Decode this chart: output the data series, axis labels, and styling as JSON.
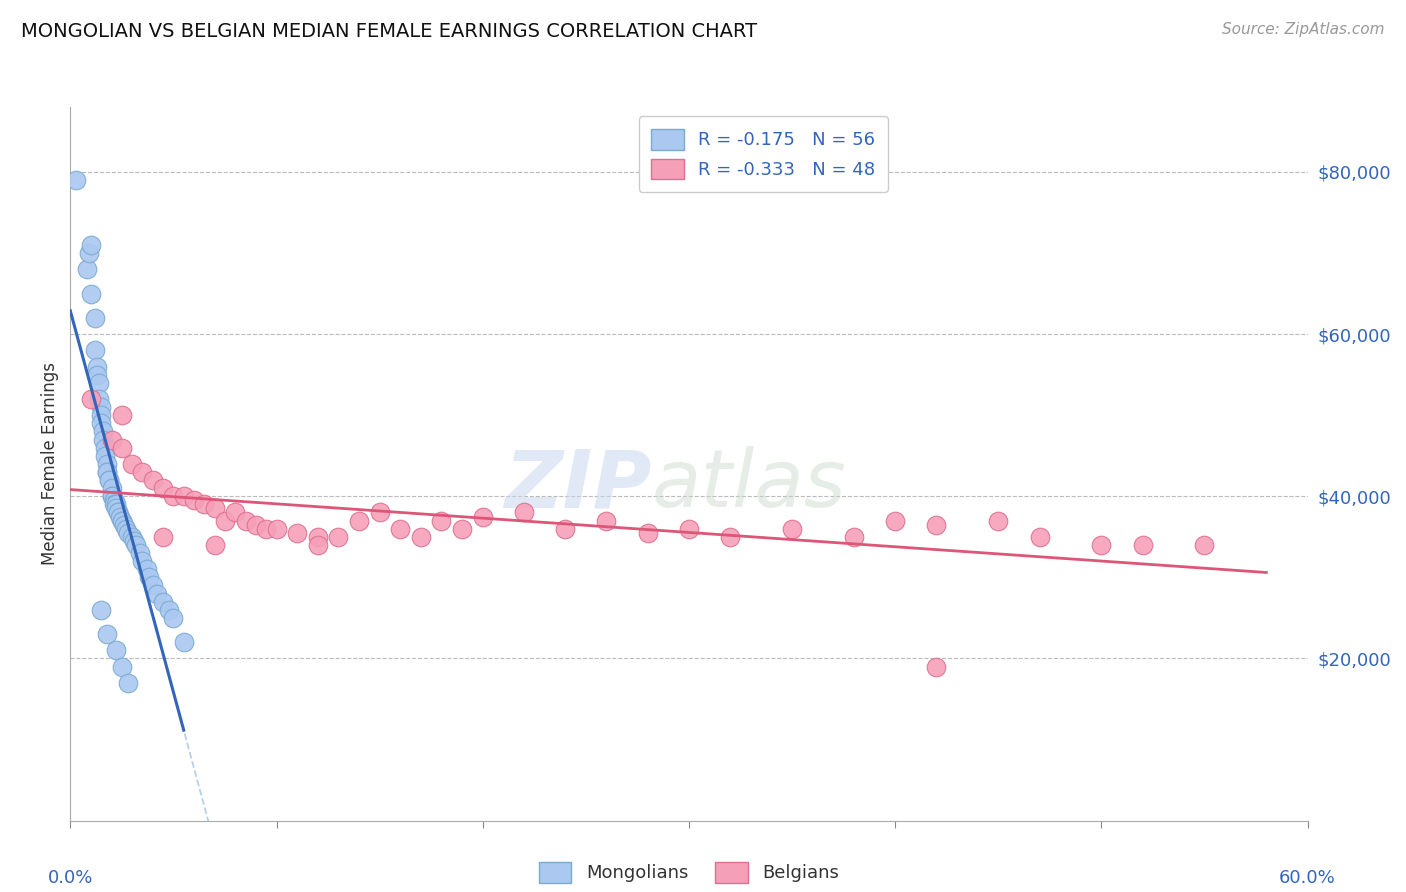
{
  "title": "MONGOLIAN VS BELGIAN MEDIAN FEMALE EARNINGS CORRELATION CHART",
  "source": "Source: ZipAtlas.com",
  "ylabel": "Median Female Earnings",
  "yticks": [
    0,
    20000,
    40000,
    60000,
    80000
  ],
  "ytick_labels": [
    "",
    "$20,000",
    "$40,000",
    "$60,000",
    "$80,000"
  ],
  "xlim": [
    0.0,
    0.6
  ],
  "ylim": [
    0,
    88000
  ],
  "mongolian_r": -0.175,
  "mongolian_n": 56,
  "belgian_r": -0.333,
  "belgian_n": 48,
  "mongolian_color": "#aac8f0",
  "mongolian_edge": "#7aaad0",
  "belgian_color": "#f5a0b8",
  "belgian_edge": "#dd7090",
  "mongolian_line_color": "#3366bb",
  "belgian_line_color": "#dd5577",
  "mongolian_dashed_color": "#99bbdd",
  "background_color": "#ffffff",
  "grid_color": "#bbbbbb",
  "title_color": "#111111",
  "label_color": "#3366bb",
  "mongolian_x": [
    0.003,
    0.008,
    0.009,
    0.01,
    0.01,
    0.012,
    0.012,
    0.013,
    0.013,
    0.014,
    0.014,
    0.015,
    0.015,
    0.015,
    0.016,
    0.016,
    0.017,
    0.017,
    0.018,
    0.018,
    0.018,
    0.019,
    0.019,
    0.02,
    0.02,
    0.02,
    0.021,
    0.021,
    0.022,
    0.022,
    0.023,
    0.023,
    0.024,
    0.025,
    0.025,
    0.026,
    0.027,
    0.028,
    0.03,
    0.031,
    0.032,
    0.034,
    0.035,
    0.037,
    0.038,
    0.04,
    0.042,
    0.045,
    0.048,
    0.05,
    0.055,
    0.015,
    0.018,
    0.022,
    0.025,
    0.028
  ],
  "mongolian_y": [
    79000,
    68000,
    70000,
    71000,
    65000,
    62000,
    58000,
    56000,
    55000,
    54000,
    52000,
    51000,
    50000,
    49000,
    48000,
    47000,
    46000,
    45000,
    44000,
    43000,
    43000,
    42000,
    42000,
    41000,
    40000,
    40000,
    39500,
    39000,
    39000,
    38500,
    38000,
    38000,
    37500,
    37000,
    37000,
    36500,
    36000,
    35500,
    35000,
    34500,
    34000,
    33000,
    32000,
    31000,
    30000,
    29000,
    28000,
    27000,
    26000,
    25000,
    22000,
    26000,
    23000,
    21000,
    19000,
    17000
  ],
  "belgian_x": [
    0.01,
    0.02,
    0.025,
    0.03,
    0.035,
    0.04,
    0.045,
    0.05,
    0.055,
    0.06,
    0.065,
    0.07,
    0.075,
    0.08,
    0.085,
    0.09,
    0.095,
    0.1,
    0.11,
    0.12,
    0.13,
    0.14,
    0.15,
    0.16,
    0.17,
    0.18,
    0.19,
    0.2,
    0.22,
    0.24,
    0.26,
    0.28,
    0.3,
    0.32,
    0.35,
    0.38,
    0.4,
    0.42,
    0.45,
    0.47,
    0.5,
    0.52,
    0.55,
    0.025,
    0.045,
    0.07,
    0.12,
    0.42
  ],
  "belgian_y": [
    52000,
    47000,
    46000,
    44000,
    43000,
    42000,
    41000,
    40000,
    40000,
    39500,
    39000,
    38500,
    37000,
    38000,
    37000,
    36500,
    36000,
    36000,
    35500,
    35000,
    35000,
    37000,
    38000,
    36000,
    35000,
    37000,
    36000,
    37500,
    38000,
    36000,
    37000,
    35500,
    36000,
    35000,
    36000,
    35000,
    37000,
    36500,
    37000,
    35000,
    34000,
    34000,
    34000,
    50000,
    35000,
    34000,
    34000,
    19000
  ],
  "watermark_text": "ZIP​atlas",
  "legend_label_mongo": "R = -0.175   N = 56",
  "legend_label_belg": "R = -0.333   N = 48"
}
